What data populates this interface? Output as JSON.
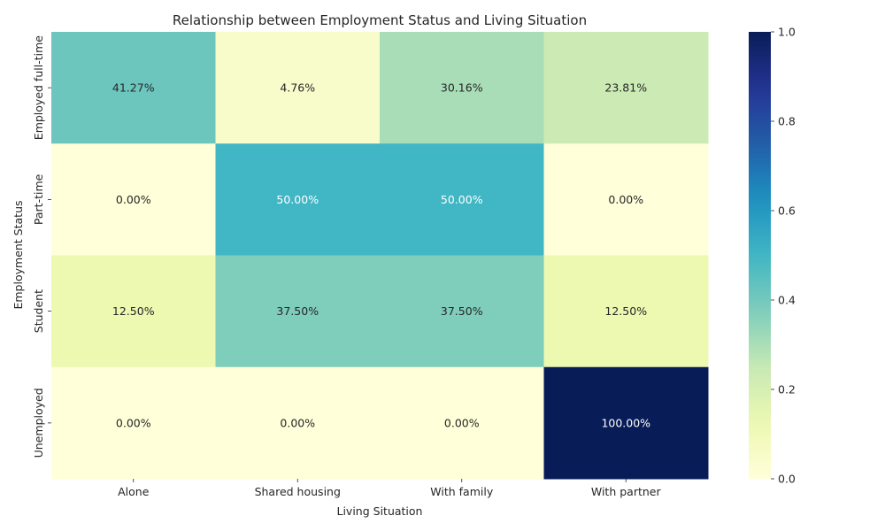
{
  "chart_data": {
    "type": "heatmap",
    "title": "Relationship between Employment Status and Living Situation",
    "xlabel": "Living Situation",
    "ylabel": "Employment Status",
    "x_categories": [
      "Alone",
      "Shared housing",
      "With family",
      "With partner"
    ],
    "y_categories": [
      "Employed full-time",
      "Part-time",
      "Student",
      "Unemployed"
    ],
    "values": [
      [
        0.4127,
        0.0476,
        0.3016,
        0.2381
      ],
      [
        0.0,
        0.5,
        0.5,
        0.0
      ],
      [
        0.125,
        0.375,
        0.375,
        0.125
      ],
      [
        0.0,
        0.0,
        0.0,
        1.0
      ]
    ],
    "cell_labels": [
      [
        "41.27%",
        "4.76%",
        "30.16%",
        "23.81%"
      ],
      [
        "0.00%",
        "50.00%",
        "50.00%",
        "0.00%"
      ],
      [
        "12.50%",
        "37.50%",
        "37.50%",
        "12.50%"
      ],
      [
        "0.00%",
        "0.00%",
        "0.00%",
        "100.00%"
      ]
    ],
    "colormap": "YlGnBu",
    "vmin": 0,
    "vmax": 1,
    "colorbar_ticks": [
      "0.0",
      "0.2",
      "0.4",
      "0.6",
      "0.8",
      "1.0"
    ],
    "colorbar_tick_values": [
      0,
      0.2,
      0.4,
      0.6,
      0.8,
      1.0
    ]
  }
}
